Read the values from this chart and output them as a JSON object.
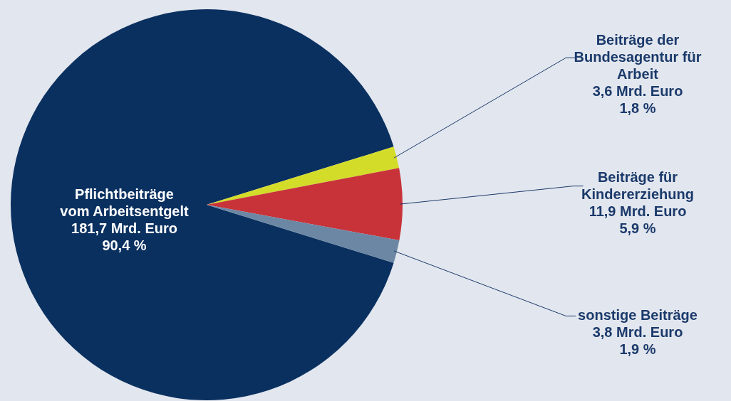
{
  "chart_data": {
    "type": "pie",
    "categories": [
      "Pflichtbeiträge vom Arbeitsentgelt",
      "Beiträge der Bundesagentur für Arbeit",
      "Beiträge für Kindererziehung",
      "sonstige Beiträge"
    ],
    "values": [
      181.7,
      3.6,
      11.9,
      3.8
    ],
    "value_labels": [
      "181,7 Mrd. Euro\n90,4 %",
      "3,6 Mrd. Euro\n1,8 %",
      "11,9 Mrd. Euro\n5,9 %",
      "3,8 Mrd. Euro\n1,9 %"
    ],
    "colors": [
      "#0a3060",
      "#d4dc2a",
      "#c8333a",
      "#6b87a3"
    ]
  }
}
